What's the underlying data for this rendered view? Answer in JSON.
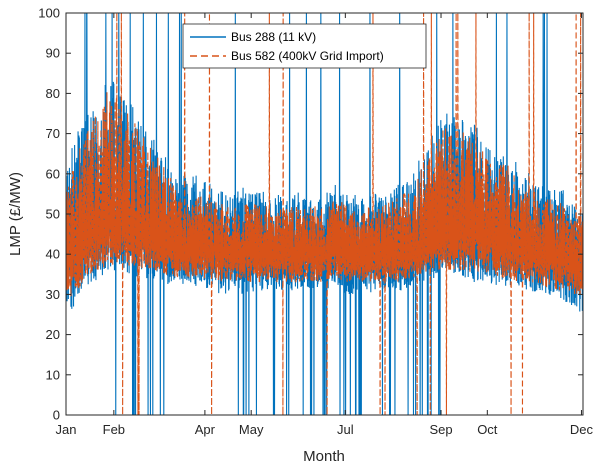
{
  "chart_data": {
    "type": "line",
    "title": "",
    "xlabel": "Month",
    "ylabel": "LMP (£/MW)",
    "xlim": [
      0,
      335
    ],
    "ylim": [
      0,
      100
    ],
    "x_ticks": [
      {
        "label": "Jan",
        "day": 0
      },
      {
        "label": "Feb",
        "day": 31
      },
      {
        "label": "Apr",
        "day": 90
      },
      {
        "label": "May",
        "day": 120
      },
      {
        "label": "Jul",
        "day": 181
      },
      {
        "label": "Sep",
        "day": 243
      },
      {
        "label": "Oct",
        "day": 273
      },
      {
        "label": "Dec",
        "day": 334
      }
    ],
    "y_ticks": [
      0,
      10,
      20,
      30,
      40,
      50,
      60,
      70,
      80,
      90,
      100
    ],
    "grid": false,
    "legend_position": "top-center",
    "series": [
      {
        "name": "Bus 288 (11 kV)",
        "color": "#0072BD",
        "style": "solid",
        "days": [
          0,
          7,
          14,
          21,
          28,
          35,
          42,
          49,
          56,
          63,
          70,
          77,
          84,
          91,
          98,
          105,
          112,
          119,
          126,
          133,
          140,
          147,
          154,
          161,
          168,
          175,
          182,
          189,
          196,
          203,
          210,
          217,
          224,
          231,
          238,
          245,
          252,
          259,
          266,
          273,
          280,
          287,
          294,
          301,
          308,
          315,
          322,
          329,
          335
        ],
        "baseline": [
          38,
          40,
          44,
          46,
          47,
          48,
          46,
          45,
          44,
          43,
          42,
          41,
          41,
          41,
          41,
          40,
          40,
          40,
          40,
          40,
          40,
          40,
          40,
          40,
          40,
          41,
          40,
          40,
          40,
          40,
          40,
          40,
          40,
          41,
          42,
          44,
          45,
          45,
          45,
          44,
          43,
          42,
          41,
          40,
          40,
          39,
          38,
          38,
          37
        ],
        "upper": [
          62,
          70,
          75,
          78,
          85,
          80,
          78,
          72,
          70,
          65,
          62,
          60,
          60,
          58,
          57,
          55,
          56,
          58,
          56,
          55,
          55,
          55,
          56,
          54,
          55,
          58,
          55,
          55,
          55,
          55,
          56,
          58,
          60,
          65,
          70,
          75,
          75,
          74,
          72,
          70,
          68,
          66,
          62,
          60,
          58,
          56,
          56,
          55,
          50
        ],
        "lower": [
          24,
          28,
          32,
          34,
          36,
          36,
          35,
          34,
          33,
          33,
          32,
          32,
          32,
          31,
          30,
          30,
          30,
          30,
          31,
          31,
          31,
          31,
          32,
          31,
          31,
          31,
          30,
          30,
          30,
          31,
          31,
          31,
          32,
          33,
          34,
          34,
          34,
          33,
          33,
          33,
          32,
          32,
          31,
          30,
          30,
          29,
          28,
          27,
          25
        ]
      },
      {
        "name": "Bus 582 (400kV Grid Import)",
        "color": "#D95319",
        "style": "dashed",
        "days": [
          0,
          7,
          14,
          21,
          28,
          35,
          42,
          49,
          56,
          63,
          70,
          77,
          84,
          91,
          98,
          105,
          112,
          119,
          126,
          133,
          140,
          147,
          154,
          161,
          168,
          175,
          182,
          189,
          196,
          203,
          210,
          217,
          224,
          231,
          238,
          245,
          252,
          259,
          266,
          273,
          280,
          287,
          294,
          301,
          308,
          315,
          322,
          329,
          335
        ],
        "baseline": [
          38,
          40,
          44,
          46,
          47,
          48,
          46,
          45,
          44,
          43,
          42,
          41,
          41,
          41,
          41,
          40,
          40,
          40,
          40,
          40,
          40,
          40,
          40,
          40,
          40,
          41,
          40,
          40,
          40,
          40,
          40,
          40,
          40,
          41,
          42,
          44,
          45,
          45,
          45,
          44,
          43,
          42,
          41,
          40,
          40,
          39,
          38,
          38,
          37
        ],
        "upper": [
          58,
          66,
          72,
          76,
          82,
          78,
          75,
          70,
          66,
          62,
          58,
          56,
          55,
          54,
          53,
          52,
          52,
          53,
          52,
          52,
          52,
          52,
          53,
          52,
          52,
          54,
          52,
          52,
          52,
          52,
          53,
          55,
          57,
          62,
          66,
          72,
          72,
          70,
          68,
          66,
          64,
          62,
          58,
          56,
          55,
          54,
          53,
          52,
          48
        ],
        "lower": [
          28,
          31,
          34,
          36,
          37,
          38,
          37,
          36,
          35,
          35,
          34,
          34,
          34,
          34,
          33,
          33,
          33,
          33,
          33,
          33,
          33,
          33,
          33,
          33,
          33,
          34,
          33,
          33,
          33,
          33,
          33,
          33,
          34,
          35,
          36,
          36,
          36,
          36,
          35,
          35,
          34,
          34,
          33,
          33,
          32,
          31,
          31,
          30,
          29
        ]
      }
    ]
  }
}
